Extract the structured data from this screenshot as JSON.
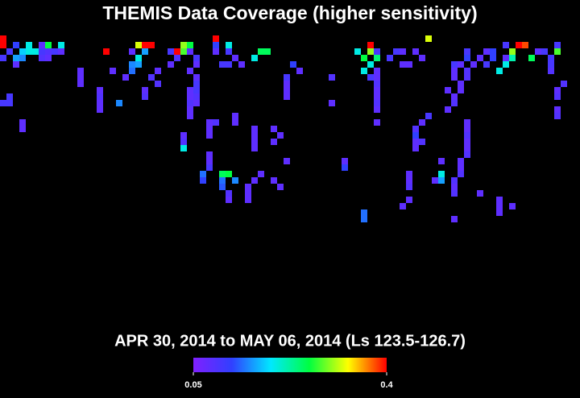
{
  "chart_data": {
    "type": "heatmap",
    "title": "THEMIS Data Coverage (higher sensitivity)",
    "subtitle": "APR 30, 2014 to MAY 06, 2014 (Ls 123.5-126.7)",
    "xlim": [
      0,
      90
    ],
    "ylim": [
      0,
      30
    ],
    "clim": [
      0.05,
      0.4
    ],
    "cticks": [
      0.05,
      0.4
    ],
    "cells": [
      [
        0,
        0,
        0.4
      ],
      [
        33,
        0,
        0.4
      ],
      [
        66,
        0,
        0.32
      ],
      [
        0,
        1,
        0.4
      ],
      [
        2,
        1,
        0.12
      ],
      [
        4,
        1,
        0.2
      ],
      [
        6,
        1,
        0.08
      ],
      [
        7,
        1,
        0.26
      ],
      [
        9,
        1,
        0.2
      ],
      [
        21,
        1,
        0.32
      ],
      [
        22,
        1,
        0.4
      ],
      [
        23,
        1,
        0.4
      ],
      [
        28,
        1,
        0.3
      ],
      [
        29,
        1,
        0.26
      ],
      [
        33,
        1,
        0.12
      ],
      [
        35,
        1,
        0.2
      ],
      [
        57,
        1,
        0.4
      ],
      [
        78,
        1,
        0.1
      ],
      [
        80,
        1,
        0.4
      ],
      [
        81,
        1,
        0.38
      ],
      [
        86,
        1,
        0.1
      ],
      [
        1,
        2,
        0.1
      ],
      [
        3,
        2,
        0.18
      ],
      [
        4,
        2,
        0.2
      ],
      [
        5,
        2,
        0.2
      ],
      [
        6,
        2,
        0.1
      ],
      [
        7,
        2,
        0.09
      ],
      [
        8,
        2,
        0.1
      ],
      [
        9,
        2,
        0.08
      ],
      [
        16,
        2,
        0.4
      ],
      [
        20,
        2,
        0.08
      ],
      [
        22,
        2,
        0.16
      ],
      [
        26,
        2,
        0.1
      ],
      [
        27,
        2,
        0.4
      ],
      [
        28,
        2,
        0.28
      ],
      [
        29,
        2,
        0.08
      ],
      [
        33,
        2,
        0.08
      ],
      [
        35,
        2,
        0.1
      ],
      [
        40,
        2,
        0.25
      ],
      [
        41,
        2,
        0.25
      ],
      [
        55,
        2,
        0.2
      ],
      [
        57,
        2,
        0.3
      ],
      [
        58,
        2,
        0.1
      ],
      [
        61,
        2,
        0.1
      ],
      [
        62,
        2,
        0.08
      ],
      [
        64,
        2,
        0.08
      ],
      [
        72,
        2,
        0.1
      ],
      [
        75,
        2,
        0.08
      ],
      [
        76,
        2,
        0.12
      ],
      [
        79,
        2,
        0.3
      ],
      [
        83,
        2,
        0.08
      ],
      [
        84,
        2,
        0.1
      ],
      [
        86,
        2,
        0.28
      ],
      [
        0,
        3,
        0.1
      ],
      [
        2,
        3,
        0.16
      ],
      [
        3,
        3,
        0.15
      ],
      [
        6,
        3,
        0.09
      ],
      [
        7,
        3,
        0.08
      ],
      [
        21,
        3,
        0.2
      ],
      [
        27,
        3,
        0.09
      ],
      [
        30,
        3,
        0.1
      ],
      [
        36,
        3,
        0.08
      ],
      [
        39,
        3,
        0.2
      ],
      [
        56,
        3,
        0.26
      ],
      [
        58,
        3,
        0.24
      ],
      [
        60,
        3,
        0.1
      ],
      [
        65,
        3,
        0.08
      ],
      [
        72,
        3,
        0.12
      ],
      [
        74,
        3,
        0.08
      ],
      [
        76,
        3,
        0.12
      ],
      [
        78,
        3,
        0.08
      ],
      [
        79,
        3,
        0.22
      ],
      [
        82,
        3,
        0.25
      ],
      [
        85,
        3,
        0.1
      ],
      [
        2,
        4,
        0.08
      ],
      [
        20,
        4,
        0.15
      ],
      [
        21,
        4,
        0.16
      ],
      [
        26,
        4,
        0.08
      ],
      [
        30,
        4,
        0.08
      ],
      [
        34,
        4,
        0.1
      ],
      [
        35,
        4,
        0.1
      ],
      [
        37,
        4,
        0.08
      ],
      [
        45,
        4,
        0.12
      ],
      [
        57,
        4,
        0.2
      ],
      [
        62,
        4,
        0.08
      ],
      [
        63,
        4,
        0.08
      ],
      [
        70,
        4,
        0.1
      ],
      [
        71,
        4,
        0.08
      ],
      [
        73,
        4,
        0.08
      ],
      [
        75,
        4,
        0.1
      ],
      [
        78,
        4,
        0.2
      ],
      [
        85,
        4,
        0.1
      ],
      [
        12,
        5,
        0.08
      ],
      [
        17,
        5,
        0.08
      ],
      [
        20,
        5,
        0.14
      ],
      [
        24,
        5,
        0.08
      ],
      [
        29,
        5,
        0.08
      ],
      [
        46,
        5,
        0.08
      ],
      [
        56,
        5,
        0.2
      ],
      [
        58,
        5,
        0.08
      ],
      [
        70,
        5,
        0.08
      ],
      [
        72,
        5,
        0.09
      ],
      [
        77,
        5,
        0.2
      ],
      [
        85,
        5,
        0.09
      ],
      [
        12,
        6,
        0.08
      ],
      [
        19,
        6,
        0.08
      ],
      [
        23,
        6,
        0.09
      ],
      [
        30,
        6,
        0.08
      ],
      [
        44,
        6,
        0.1
      ],
      [
        51,
        6,
        0.09
      ],
      [
        57,
        6,
        0.1
      ],
      [
        58,
        6,
        0.08
      ],
      [
        70,
        6,
        0.08
      ],
      [
        72,
        6,
        0.09
      ],
      [
        12,
        7,
        0.08
      ],
      [
        24,
        7,
        0.09
      ],
      [
        30,
        7,
        0.1
      ],
      [
        44,
        7,
        0.08
      ],
      [
        58,
        7,
        0.09
      ],
      [
        71,
        7,
        0.08
      ],
      [
        87,
        7,
        0.09
      ],
      [
        15,
        8,
        0.08
      ],
      [
        22,
        8,
        0.08
      ],
      [
        29,
        8,
        0.08
      ],
      [
        30,
        8,
        0.1
      ],
      [
        44,
        8,
        0.08
      ],
      [
        58,
        8,
        0.08
      ],
      [
        69,
        8,
        0.08
      ],
      [
        71,
        8,
        0.08
      ],
      [
        86,
        8,
        0.08
      ],
      [
        1,
        9,
        0.1
      ],
      [
        15,
        9,
        0.09
      ],
      [
        22,
        9,
        0.09
      ],
      [
        29,
        9,
        0.08
      ],
      [
        30,
        9,
        0.09
      ],
      [
        44,
        9,
        0.08
      ],
      [
        58,
        9,
        0.08
      ],
      [
        70,
        9,
        0.08
      ],
      [
        86,
        9,
        0.09
      ],
      [
        0,
        10,
        0.1
      ],
      [
        1,
        10,
        0.1
      ],
      [
        15,
        10,
        0.08
      ],
      [
        18,
        10,
        0.15
      ],
      [
        29,
        10,
        0.09
      ],
      [
        30,
        10,
        0.08
      ],
      [
        51,
        10,
        0.08
      ],
      [
        58,
        10,
        0.09
      ],
      [
        70,
        10,
        0.09
      ],
      [
        15,
        11,
        0.08
      ],
      [
        29,
        11,
        0.08
      ],
      [
        58,
        11,
        0.08
      ],
      [
        69,
        11,
        0.08
      ],
      [
        86,
        11,
        0.08
      ],
      [
        29,
        12,
        0.08
      ],
      [
        36,
        12,
        0.08
      ],
      [
        66,
        12,
        0.1
      ],
      [
        86,
        12,
        0.09
      ],
      [
        3,
        13,
        0.08
      ],
      [
        32,
        13,
        0.08
      ],
      [
        33,
        13,
        0.09
      ],
      [
        65,
        13,
        0.08
      ],
      [
        72,
        13,
        0.08
      ],
      [
        36,
        13,
        0.08
      ],
      [
        58,
        13,
        0.08
      ],
      [
        3,
        14,
        0.08
      ],
      [
        32,
        14,
        0.08
      ],
      [
        42,
        14,
        0.08
      ],
      [
        39,
        14,
        0.08
      ],
      [
        64,
        14,
        0.09
      ],
      [
        72,
        14,
        0.08
      ],
      [
        28,
        15,
        0.08
      ],
      [
        32,
        15,
        0.08
      ],
      [
        39,
        15,
        0.08
      ],
      [
        43,
        15,
        0.08
      ],
      [
        64,
        15,
        0.12
      ],
      [
        72,
        15,
        0.09
      ],
      [
        28,
        16,
        0.09
      ],
      [
        39,
        16,
        0.08
      ],
      [
        42,
        16,
        0.08
      ],
      [
        64,
        16,
        0.08
      ],
      [
        65,
        16,
        0.09
      ],
      [
        72,
        16,
        0.08
      ],
      [
        28,
        17,
        0.2
      ],
      [
        39,
        17,
        0.08
      ],
      [
        64,
        17,
        0.08
      ],
      [
        72,
        17,
        0.08
      ],
      [
        32,
        18,
        0.08
      ],
      [
        72,
        18,
        0.09
      ],
      [
        32,
        19,
        0.08
      ],
      [
        44,
        19,
        0.08
      ],
      [
        53,
        19,
        0.08
      ],
      [
        68,
        19,
        0.08
      ],
      [
        71,
        19,
        0.08
      ],
      [
        32,
        20,
        0.1
      ],
      [
        53,
        20,
        0.12
      ],
      [
        71,
        20,
        0.08
      ],
      [
        34,
        21,
        0.25
      ],
      [
        35,
        21,
        0.26
      ],
      [
        31,
        21,
        0.14
      ],
      [
        40,
        21,
        0.08
      ],
      [
        68,
        21,
        0.2
      ],
      [
        63,
        21,
        0.08
      ],
      [
        71,
        21,
        0.09
      ],
      [
        31,
        22,
        0.12
      ],
      [
        34,
        22,
        0.14
      ],
      [
        36,
        22,
        0.15
      ],
      [
        39,
        22,
        0.08
      ],
      [
        42,
        22,
        0.08
      ],
      [
        68,
        22,
        0.16
      ],
      [
        63,
        22,
        0.08
      ],
      [
        67,
        22,
        0.08
      ],
      [
        70,
        22,
        0.09
      ],
      [
        34,
        23,
        0.13
      ],
      [
        38,
        23,
        0.08
      ],
      [
        43,
        23,
        0.08
      ],
      [
        63,
        23,
        0.09
      ],
      [
        70,
        23,
        0.08
      ],
      [
        35,
        24,
        0.09
      ],
      [
        38,
        24,
        0.08
      ],
      [
        74,
        24,
        0.08
      ],
      [
        70,
        24,
        0.09
      ],
      [
        35,
        25,
        0.08
      ],
      [
        38,
        25,
        0.08
      ],
      [
        63,
        25,
        0.08
      ],
      [
        77,
        25,
        0.08
      ],
      [
        77,
        26,
        0.08
      ],
      [
        62,
        26,
        0.08
      ],
      [
        79,
        26,
        0.08
      ],
      [
        77,
        27,
        0.08
      ],
      [
        56,
        27,
        0.14
      ],
      [
        56,
        28,
        0.14
      ],
      [
        70,
        28,
        0.08
      ]
    ]
  }
}
